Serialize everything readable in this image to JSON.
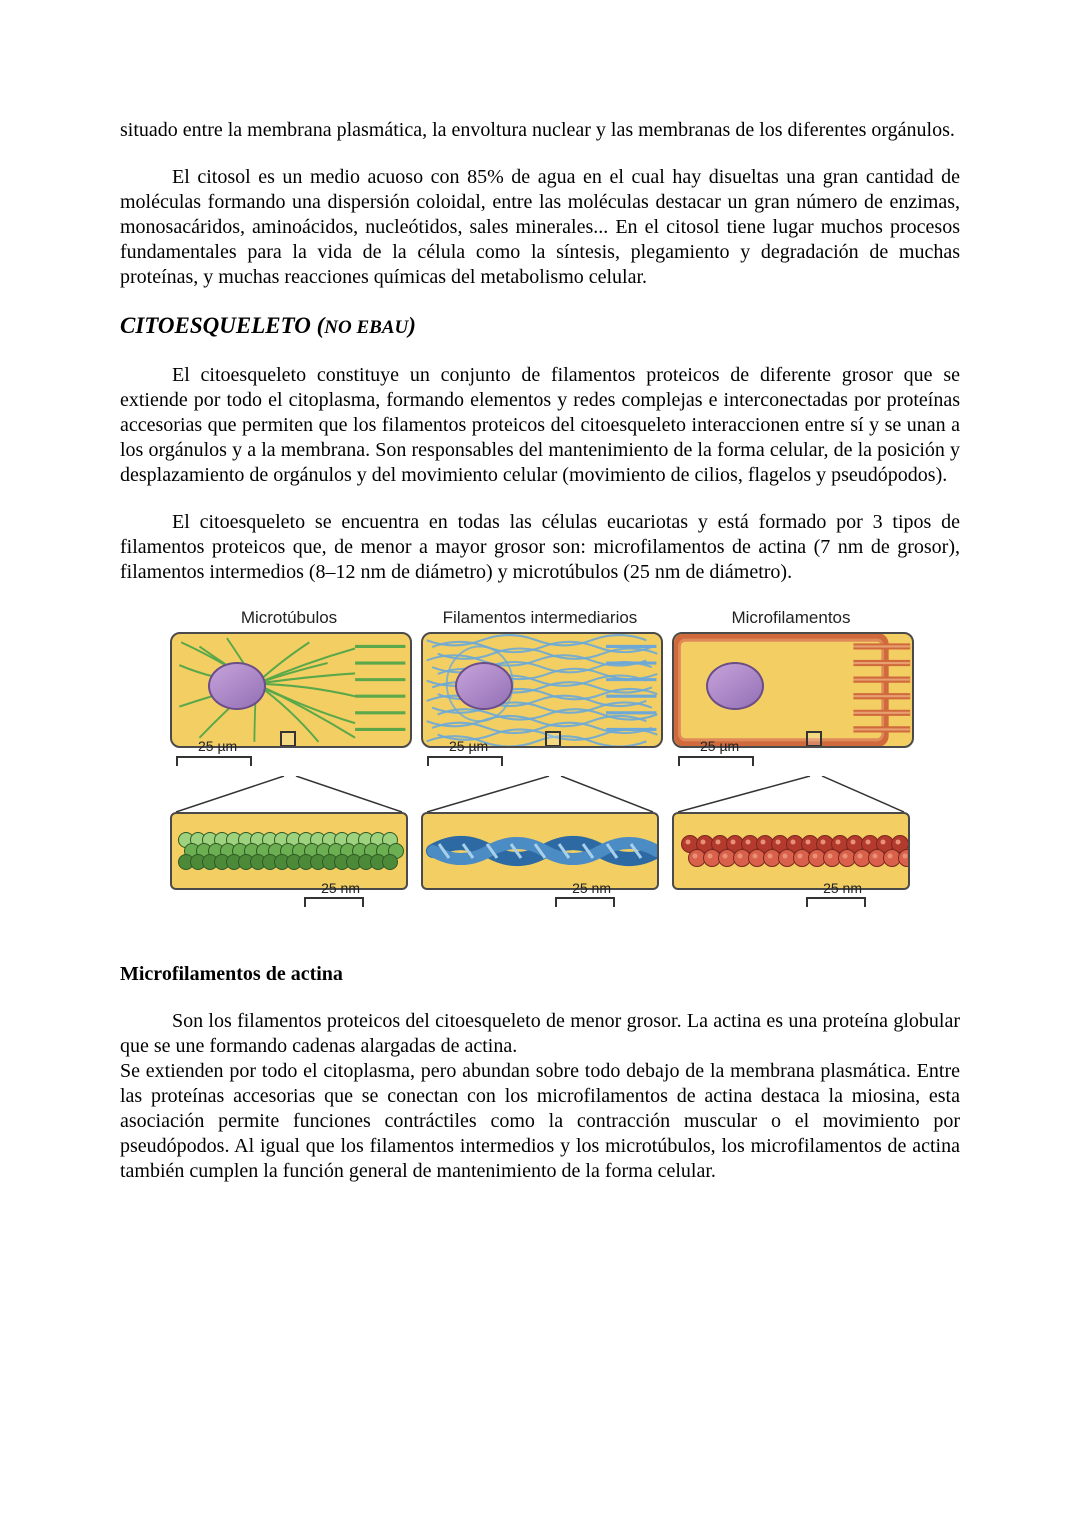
{
  "doc": {
    "p1": "situado entre la membrana plasmática, la envoltura nuclear y las membranas de los diferentes orgánulos.",
    "p2": "El citosol es un medio acuoso con 85% de agua en el cual hay disueltas una gran cantidad de moléculas formando una dispersión coloidal, entre las moléculas destacar un gran número de enzimas, monosacáridos, aminoácidos, nucleótidos, sales minerales... En el citosol tiene lugar muchos procesos fundamentales para la vida de la célula como la síntesis, plegamiento y degradación de muchas proteínas, y muchas reacciones químicas del metabolismo celular.",
    "heading_title": "CITOESQUELETO (",
    "heading_sub": "NO EBAU",
    "heading_close": ")",
    "p3": "El citoesqueleto constituye un conjunto de filamentos proteicos de diferente grosor que se extiende por todo el citoplasma, formando elementos y redes complejas e interconectadas por proteínas accesorias que permiten que los filamentos proteicos del citoesqueleto interaccionen entre sí y se unan a los orgánulos y a la membrana. Son responsables del mantenimiento de la forma celular, de la posición y desplazamiento de orgánulos y del movimiento celular (movimiento de cilios, flagelos y pseudópodos).",
    "p4": "El citoesqueleto se encuentra en todas las células eucariotas y está formado por 3 tipos de filamentos proteicos que, de menor a mayor grosor son: microfilamentos de actina (7 nm de grosor), filamentos intermedios (8–12 nm de diámetro) y microtúbulos (25 nm de diámetro).",
    "subheading": "Microfilamentos de actina",
    "p5": "Son los filamentos proteicos del citoesqueleto de menor grosor. La actina es una proteína globular que se une formando cadenas alargadas de actina.",
    "p6": "Se extienden por todo el citoplasma, pero abundan sobre todo debajo de la membrana plasmática. Entre las proteínas accesorias que se conectan con los microfilamentos de actina destaca la miosina, esta asociación permite funciones contráctiles como la contracción muscular o el movimiento por pseudópodos. Al igual que los filamentos intermedios y los microtúbulos, los microfilamentos de actina también cumplen la función general de mantenimiento de la forma celular."
  },
  "figure": {
    "scale_top": "25 µm",
    "scale_bottom": "25 nm",
    "panels": [
      {
        "title": "Microtúbulos",
        "cell_bg": "#f3cf63",
        "nucleus_fill": "linear-gradient(145deg,#c7a3db,#9370b5)",
        "filament_color": "#5aa84a",
        "zoom_bg": "#f3cf63",
        "tube_colors": [
          "#9ed27f",
          "#6cae52",
          "#4c8a3a"
        ]
      },
      {
        "title": "Filamentos intermediarios",
        "cell_bg": "#f3cf63",
        "nucleus_fill": "linear-gradient(145deg,#c7a3db,#9370b5)",
        "filament_color": "#6da8d6",
        "zoom_bg": "#f3cf63",
        "fiber_colors": [
          "#2d6aa3",
          "#4b8cc5",
          "#a9d0ea"
        ]
      },
      {
        "title": "Microfilamentos",
        "cell_bg": "#f3cf63",
        "nucleus_fill": "linear-gradient(145deg,#c7a3db,#9370b5)",
        "filament_color": "#d06a3c",
        "zoom_bg": "#f3cf63",
        "bead_colors": [
          "#b33a2d",
          "#d9604a",
          "#e89078"
        ]
      }
    ]
  }
}
